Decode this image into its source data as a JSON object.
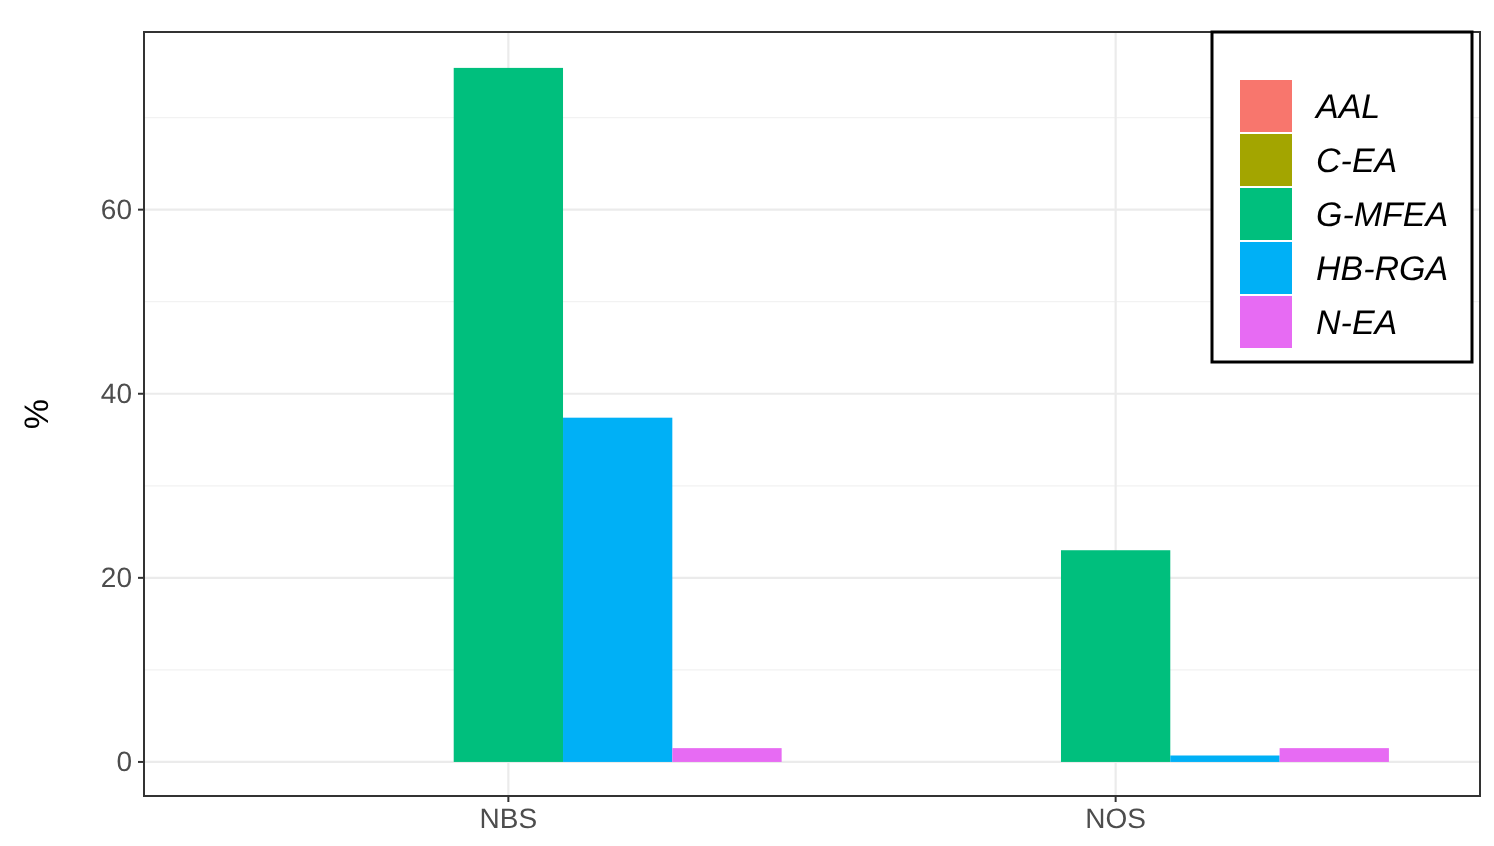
{
  "chart_data": {
    "type": "bar",
    "ylabel": "%",
    "categories": [
      "NBS",
      "NOS"
    ],
    "series": [
      {
        "name": "AAL",
        "color": "#f8766d",
        "values": [
          0,
          0
        ]
      },
      {
        "name": "C-EA",
        "color": "#a3a500",
        "values": [
          0,
          0
        ]
      },
      {
        "name": "G-MFEA",
        "color": "#00bf7d",
        "values": [
          75.4,
          23.0
        ]
      },
      {
        "name": "HB-RGA",
        "color": "#00b0f6",
        "values": [
          37.4,
          0.7
        ]
      },
      {
        "name": "N-EA",
        "color": "#e76bf3",
        "values": [
          1.5,
          1.5
        ]
      }
    ],
    "ylim": [
      -3.7,
      79.3
    ],
    "yticks": [
      0,
      20,
      40,
      60
    ],
    "grid": true,
    "legend": "top right"
  }
}
